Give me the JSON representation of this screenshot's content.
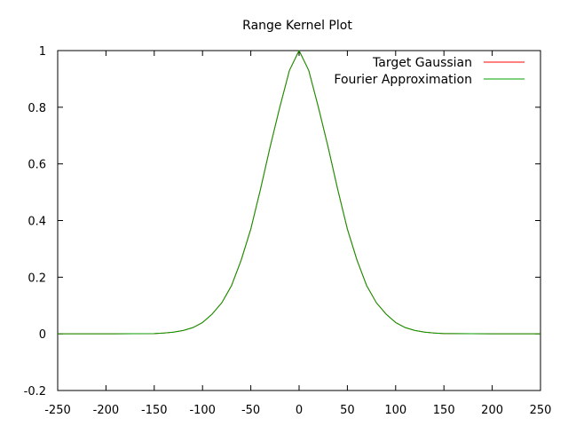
{
  "chart_data": {
    "type": "line",
    "title": "Range Kernel Plot",
    "xlabel": "",
    "ylabel": "",
    "xlim": [
      -250,
      250
    ],
    "ylim": [
      -0.2,
      1
    ],
    "x_ticks": [
      "-250",
      "-200",
      "-150",
      "-100",
      "-50",
      "0",
      "50",
      "100",
      "150",
      "200",
      "250"
    ],
    "y_ticks": [
      "-0.2",
      "0",
      "0.2",
      "0.4",
      "0.6",
      "0.8",
      "1"
    ],
    "grid": false,
    "legend_position": "top-right",
    "series": [
      {
        "name": "Target Gaussian",
        "color": "#ff0000",
        "x": [
          -250,
          -200,
          -150,
          -140,
          -130,
          -120,
          -110,
          -100,
          -90,
          -80,
          -70,
          -60,
          -50,
          -40,
          -30,
          -20,
          -10,
          0,
          10,
          20,
          30,
          40,
          50,
          60,
          70,
          80,
          90,
          100,
          110,
          120,
          130,
          140,
          150,
          200,
          250
        ],
        "y": [
          0,
          0,
          0.001,
          0.003,
          0.006,
          0.012,
          0.022,
          0.04,
          0.07,
          0.11,
          0.17,
          0.26,
          0.37,
          0.51,
          0.66,
          0.8,
          0.93,
          1,
          0.93,
          0.8,
          0.66,
          0.51,
          0.37,
          0.26,
          0.17,
          0.11,
          0.07,
          0.04,
          0.022,
          0.012,
          0.006,
          0.003,
          0.001,
          0,
          0
        ]
      },
      {
        "name": "Fourier Approximation",
        "color": "#00a000",
        "x": [
          -250,
          -200,
          -150,
          -140,
          -130,
          -120,
          -110,
          -100,
          -90,
          -80,
          -70,
          -60,
          -50,
          -40,
          -30,
          -20,
          -10,
          0,
          10,
          20,
          30,
          40,
          50,
          60,
          70,
          80,
          90,
          100,
          110,
          120,
          130,
          140,
          150,
          200,
          250
        ],
        "y": [
          0,
          0,
          0.001,
          0.003,
          0.006,
          0.012,
          0.022,
          0.04,
          0.07,
          0.11,
          0.17,
          0.26,
          0.37,
          0.51,
          0.66,
          0.8,
          0.93,
          1,
          0.93,
          0.8,
          0.66,
          0.51,
          0.37,
          0.26,
          0.17,
          0.11,
          0.07,
          0.04,
          0.022,
          0.012,
          0.006,
          0.003,
          0.001,
          0,
          0
        ]
      }
    ]
  }
}
